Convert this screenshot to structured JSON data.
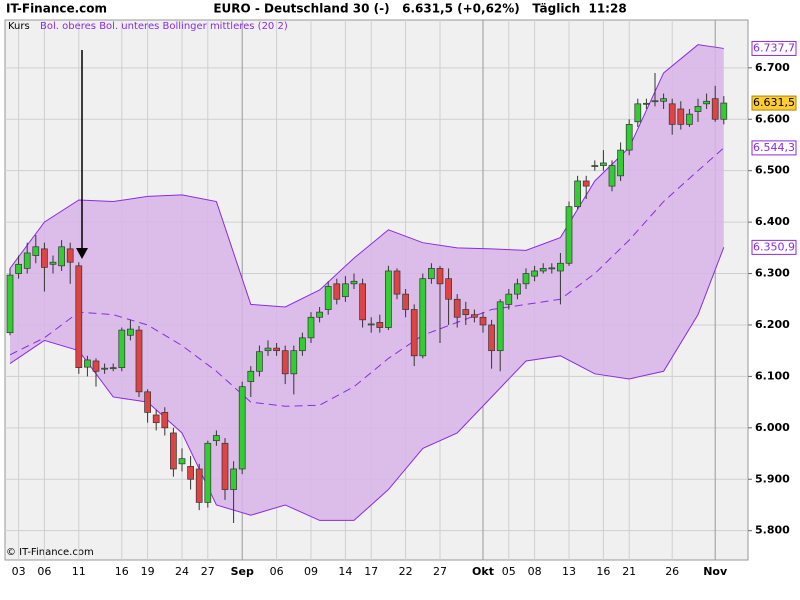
{
  "chart_data": {
    "type": "candlestick",
    "header": "IT-Finance.com",
    "title": "EURO - Deutschland 30 (-)   6.631,5 (+0,62%)   Täglich  11:28",
    "footer": "© IT-Finance.com",
    "price_name": "Kurs",
    "categories": [
      null,
      "03",
      null,
      null,
      "06",
      null,
      null,
      null,
      "11",
      null,
      null,
      null,
      null,
      "16",
      null,
      null,
      "19",
      null,
      null,
      null,
      "24",
      null,
      null,
      "27",
      null,
      null,
      null,
      "Sep",
      null,
      null,
      null,
      "06",
      null,
      null,
      null,
      "09",
      null,
      null,
      null,
      "14",
      null,
      null,
      "17",
      null,
      null,
      null,
      "22",
      null,
      null,
      null,
      "27",
      null,
      null,
      null,
      null,
      "Okt",
      null,
      null,
      "05",
      null,
      null,
      "08",
      null,
      null,
      null,
      "13",
      null,
      null,
      null,
      "16",
      null,
      null,
      "21",
      null,
      null,
      null,
      null,
      "26",
      null,
      null,
      null,
      null,
      "Nov",
      null
    ],
    "open": [
      6185,
      6300,
      6310,
      6335,
      6348,
      6318,
      6315,
      6348,
      6315,
      6118,
      6130,
      6114,
      6115,
      6117,
      6180,
      6190,
      6070,
      6025,
      6030,
      5990,
      5930,
      5925,
      5920,
      5855,
      5975,
      5970,
      5880,
      5920,
      6090,
      6110,
      6150,
      6155,
      6150,
      6105,
      6150,
      6175,
      6215,
      6230,
      6280,
      6255,
      6280,
      6280,
      6200,
      6205,
      6195,
      6305,
      6260,
      6230,
      6140,
      6290,
      6310,
      6290,
      6250,
      6230,
      6220,
      6215,
      6200,
      6150,
      6240,
      6260,
      6280,
      6295,
      6305,
      6310,
      6305,
      6320,
      6430,
      6480,
      6508,
      6510,
      6470,
      6490,
      6540,
      6595,
      6630,
      6635,
      6635,
      6630,
      6620,
      6590,
      6615,
      6630,
      6640,
      6600
    ],
    "high": [
      6310,
      6335,
      6360,
      6375,
      6360,
      6335,
      6365,
      6360,
      6322,
      6140,
      6135,
      6125,
      6125,
      6195,
      6210,
      6198,
      6075,
      6035,
      6040,
      6000,
      5960,
      5945,
      5930,
      5975,
      5995,
      5980,
      5935,
      6090,
      6120,
      6160,
      6170,
      6165,
      6160,
      6160,
      6185,
      6225,
      6235,
      6285,
      6290,
      6295,
      6300,
      6290,
      6215,
      6220,
      6315,
      6310,
      6270,
      6240,
      6300,
      6320,
      6315,
      6310,
      6260,
      6245,
      6230,
      6225,
      6210,
      6250,
      6270,
      6290,
      6310,
      6315,
      6320,
      6320,
      6340,
      6440,
      6490,
      6490,
      6520,
      6540,
      6520,
      6555,
      6600,
      6640,
      6640,
      6690,
      6650,
      6640,
      6635,
      6620,
      6640,
      6650,
      6665,
      6645
    ],
    "low": [
      6180,
      6290,
      6300,
      6320,
      6265,
      6300,
      6305,
      6280,
      6105,
      6100,
      6080,
      6105,
      6110,
      6110,
      6170,
      6060,
      6010,
      5995,
      5985,
      5905,
      5915,
      5880,
      5840,
      5845,
      5965,
      5860,
      5815,
      5910,
      6060,
      6100,
      6140,
      6140,
      6085,
      6065,
      6140,
      6165,
      6205,
      6220,
      6240,
      6245,
      6270,
      6195,
      6185,
      6185,
      6190,
      6250,
      6215,
      6120,
      6135,
      6280,
      6165,
      6200,
      6195,
      6200,
      6205,
      6185,
      6115,
      6110,
      6230,
      6250,
      6270,
      6285,
      6300,
      6300,
      6240,
      6315,
      6425,
      6445,
      6500,
      6500,
      6460,
      6480,
      6530,
      6585,
      6620,
      6625,
      6620,
      6570,
      6580,
      6585,
      6595,
      6620,
      6595,
      6590
    ],
    "close": [
      6297,
      6318,
      6340,
      6352,
      6312,
      6322,
      6352,
      6322,
      6117,
      6132,
      6110,
      6116,
      6117,
      6190,
      6192,
      6070,
      6030,
      6010,
      6000,
      5920,
      5940,
      5900,
      5855,
      5970,
      5985,
      5880,
      5920,
      6080,
      6110,
      6148,
      6155,
      6150,
      6105,
      6150,
      6175,
      6215,
      6225,
      6275,
      6250,
      6280,
      6285,
      6210,
      6202,
      6195,
      6305,
      6260,
      6230,
      6140,
      6290,
      6310,
      6280,
      6250,
      6215,
      6220,
      6215,
      6200,
      6150,
      6245,
      6260,
      6280,
      6300,
      6305,
      6310,
      6311,
      6320,
      6430,
      6480,
      6470,
      6510,
      6515,
      6510,
      6540,
      6590,
      6630,
      6631,
      6636,
      6640,
      6590,
      6590,
      6610,
      6625,
      6635,
      6600,
      6631.5
    ],
    "close_label": "6.631,5",
    "up_color": "#33cc33",
    "down_color": "#dd4444",
    "price_label_color": "#ffcc33",
    "band_fill": "#d8b4e8",
    "series": [
      {
        "name": "Bol. oberes",
        "color": "#8a2be2",
        "x": [
          0,
          4,
          8,
          12,
          16,
          20,
          24,
          28,
          32,
          36,
          40,
          44,
          48,
          52,
          56,
          60,
          64,
          68,
          72,
          76,
          80,
          83
        ],
        "values": [
          6310,
          6400,
          6443,
          6440,
          6450,
          6453,
          6440,
          6240,
          6235,
          6268,
          6330,
          6385,
          6360,
          6350,
          6348,
          6345,
          6370,
          6480,
          6545,
          6690,
          6745,
          6737.7
        ],
        "last_label": "6.737,7"
      },
      {
        "name": "Bol. unteres",
        "color": "#8a2be2",
        "x": [
          0,
          4,
          8,
          12,
          16,
          20,
          24,
          28,
          32,
          36,
          40,
          44,
          48,
          52,
          56,
          60,
          64,
          68,
          72,
          76,
          80,
          83
        ],
        "values": [
          6125,
          6170,
          6150,
          6060,
          6050,
          5990,
          5850,
          5830,
          5850,
          5820,
          5820,
          5880,
          5960,
          5990,
          6060,
          6130,
          6140,
          6105,
          6095,
          6110,
          6220,
          6350.9
        ],
        "last_label": "6.350,9"
      },
      {
        "name": "Bollinger mittleres (20 2)",
        "color": "#8a2be2",
        "dashed": true,
        "x": [
          0,
          4,
          8,
          12,
          16,
          20,
          24,
          28,
          32,
          36,
          40,
          44,
          48,
          52,
          56,
          60,
          64,
          68,
          72,
          76,
          80,
          83
        ],
        "values": [
          6142,
          6175,
          6225,
          6220,
          6200,
          6160,
          6110,
          6050,
          6042,
          6044,
          6080,
          6135,
          6180,
          6205,
          6230,
          6240,
          6250,
          6300,
          6365,
          6440,
          6500,
          6544.3
        ],
        "last_label": "6.544,3"
      }
    ],
    "ylim": [
      5743,
      6793
    ],
    "yticks": [
      {
        "value": 5800,
        "label": "5.800"
      },
      {
        "value": 5900,
        "label": "5.900"
      },
      {
        "value": 6000,
        "label": "6.000"
      },
      {
        "value": 6100,
        "label": "6.100"
      },
      {
        "value": 6200,
        "label": "6.200"
      },
      {
        "value": 6300,
        "label": "6.300"
      },
      {
        "value": 6400,
        "label": "6.400"
      },
      {
        "value": 6500,
        "label": "6.500"
      },
      {
        "value": 6600,
        "label": "6.600"
      },
      {
        "value": 6700,
        "label": "6.700"
      }
    ],
    "grid": true
  }
}
